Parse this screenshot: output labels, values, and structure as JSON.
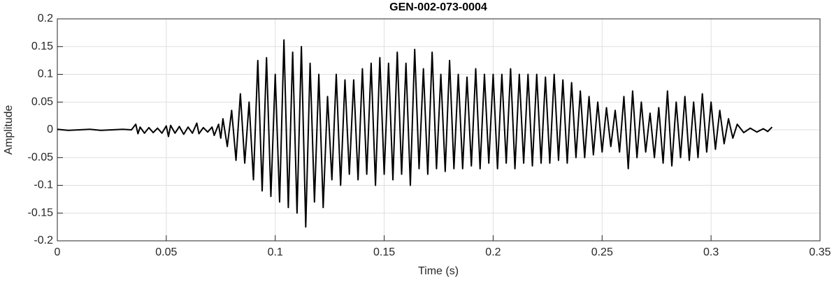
{
  "chart_data": {
    "type": "line",
    "title": "GEN-002-073-0004",
    "x_label": "Time (s)",
    "y_label": "Amplitude",
    "xlim": [
      0,
      0.35
    ],
    "ylim": [
      -0.2,
      0.2
    ],
    "xticks": [
      0,
      0.05,
      0.1,
      0.15,
      0.2,
      0.25,
      0.3,
      0.35
    ],
    "yticks": [
      -0.2,
      -0.15,
      -0.1,
      -0.05,
      0,
      0.05,
      0.1,
      0.15,
      0.2
    ],
    "grid": true,
    "series": [
      {
        "color": "#000000",
        "x": [
          0,
          0.005,
          0.01,
          0.015,
          0.02,
          0.025,
          0.03,
          0.034,
          0.036,
          0.037,
          0.038,
          0.04,
          0.042,
          0.044,
          0.046,
          0.048,
          0.05,
          0.051,
          0.052,
          0.054,
          0.056,
          0.058,
          0.06,
          0.062,
          0.064,
          0.065,
          0.067,
          0.069,
          0.071,
          0.072,
          0.074,
          0.075,
          0.076,
          0.078,
          0.08,
          0.082,
          0.084,
          0.086,
          0.088,
          0.09,
          0.092,
          0.094,
          0.096,
          0.098,
          0.1,
          0.102,
          0.104,
          0.106,
          0.108,
          0.11,
          0.112,
          0.114,
          0.116,
          0.118,
          0.12,
          0.122,
          0.124,
          0.126,
          0.128,
          0.13,
          0.132,
          0.134,
          0.136,
          0.138,
          0.14,
          0.142,
          0.144,
          0.146,
          0.148,
          0.15,
          0.152,
          0.154,
          0.156,
          0.158,
          0.16,
          0.162,
          0.164,
          0.166,
          0.168,
          0.17,
          0.172,
          0.174,
          0.176,
          0.178,
          0.18,
          0.182,
          0.184,
          0.186,
          0.188,
          0.19,
          0.192,
          0.194,
          0.196,
          0.198,
          0.2,
          0.202,
          0.204,
          0.206,
          0.208,
          0.21,
          0.212,
          0.214,
          0.216,
          0.218,
          0.22,
          0.222,
          0.224,
          0.226,
          0.228,
          0.23,
          0.232,
          0.234,
          0.236,
          0.238,
          0.24,
          0.242,
          0.244,
          0.246,
          0.248,
          0.25,
          0.252,
          0.254,
          0.256,
          0.258,
          0.26,
          0.262,
          0.264,
          0.266,
          0.268,
          0.27,
          0.272,
          0.274,
          0.276,
          0.278,
          0.28,
          0.282,
          0.284,
          0.286,
          0.288,
          0.29,
          0.292,
          0.294,
          0.296,
          0.298,
          0.3,
          0.302,
          0.304,
          0.306,
          0.308,
          0.31,
          0.312,
          0.315,
          0.318,
          0.321,
          0.324,
          0.326,
          0.328
        ],
        "values": [
          0.001,
          -0.001,
          0,
          0.001,
          -0.001,
          0,
          0.001,
          0,
          0.01,
          -0.007,
          0.005,
          -0.006,
          0.004,
          -0.005,
          0.003,
          -0.006,
          0.007,
          -0.012,
          0.008,
          -0.006,
          0.006,
          -0.008,
          0.005,
          -0.006,
          0.012,
          -0.007,
          0.004,
          -0.004,
          0.005,
          -0.01,
          0.01,
          -0.015,
          0.02,
          -0.03,
          0.035,
          -0.055,
          0.065,
          -0.06,
          0.05,
          -0.09,
          0.125,
          -0.11,
          0.13,
          -0.12,
          0.1,
          -0.13,
          0.162,
          -0.14,
          0.14,
          -0.15,
          0.15,
          -0.175,
          0.12,
          -0.13,
          0.1,
          -0.14,
          0.06,
          -0.09,
          0.1,
          -0.1,
          0.09,
          -0.08,
          0.09,
          -0.09,
          0.11,
          -0.08,
          0.12,
          -0.1,
          0.13,
          -0.08,
          0.12,
          -0.09,
          0.14,
          -0.08,
          0.12,
          -0.1,
          0.145,
          -0.07,
          0.11,
          -0.08,
          0.14,
          -0.07,
          0.1,
          -0.075,
          0.125,
          -0.07,
          0.1,
          -0.07,
          0.095,
          -0.065,
          0.11,
          -0.07,
          0.1,
          -0.06,
          0.1,
          -0.07,
          0.1,
          -0.06,
          0.11,
          -0.07,
          0.1,
          -0.06,
          0.1,
          -0.065,
          0.1,
          -0.06,
          0.095,
          -0.06,
          0.1,
          -0.055,
          0.09,
          -0.06,
          0.085,
          -0.05,
          0.07,
          -0.05,
          0.06,
          -0.045,
          0.05,
          -0.04,
          0.04,
          -0.03,
          0.035,
          -0.04,
          0.06,
          -0.07,
          0.07,
          -0.05,
          0.05,
          -0.04,
          0.03,
          -0.05,
          0.04,
          -0.06,
          0.07,
          -0.065,
          0.05,
          -0.05,
          0.06,
          -0.055,
          0.05,
          -0.05,
          0.065,
          -0.04,
          0.05,
          -0.035,
          0.035,
          -0.025,
          0.02,
          -0.015,
          0.01,
          -0.005,
          0.003,
          -0.004,
          0.002,
          -0.003,
          0.005
        ]
      }
    ]
  }
}
